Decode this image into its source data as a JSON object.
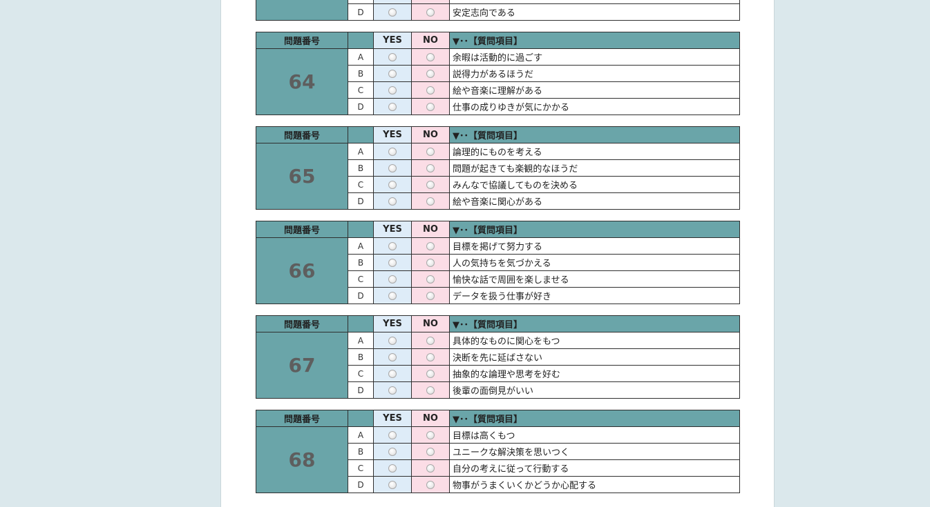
{
  "header": {
    "number_label": "問題番号",
    "yes_label": "YES",
    "no_label": "NO",
    "question_label": "▼･･【質問項目】"
  },
  "top_partial": {
    "letter": "D",
    "text": "安定志向である"
  },
  "questions": [
    {
      "number": "64",
      "items": [
        {
          "letter": "A",
          "text": "余暇は活動的に過ごす"
        },
        {
          "letter": "B",
          "text": "説得力があるほうだ"
        },
        {
          "letter": "C",
          "text": "絵や音楽に理解がある"
        },
        {
          "letter": "D",
          "text": "仕事の成りゆきが気にかかる"
        }
      ]
    },
    {
      "number": "65",
      "items": [
        {
          "letter": "A",
          "text": "論理的にものを考える"
        },
        {
          "letter": "B",
          "text": "問題が起きても楽観的なほうだ"
        },
        {
          "letter": "C",
          "text": "みんなで協議してものを決める"
        },
        {
          "letter": "D",
          "text": "絵や音楽に関心がある"
        }
      ]
    },
    {
      "number": "66",
      "items": [
        {
          "letter": "A",
          "text": "目標を掲げて努力する"
        },
        {
          "letter": "B",
          "text": "人の気持ちを気づかえる"
        },
        {
          "letter": "C",
          "text": "愉快な話で周囲を楽しませる"
        },
        {
          "letter": "D",
          "text": "データを扱う仕事が好き"
        }
      ]
    },
    {
      "number": "67",
      "items": [
        {
          "letter": "A",
          "text": "具体的なものに関心をもつ"
        },
        {
          "letter": "B",
          "text": "決断を先に延ばさない"
        },
        {
          "letter": "C",
          "text": "抽象的な論理や思考を好む"
        },
        {
          "letter": "D",
          "text": "後輩の面倒見がいい"
        }
      ]
    },
    {
      "number": "68",
      "items": [
        {
          "letter": "A",
          "text": "目標は高くもつ"
        },
        {
          "letter": "B",
          "text": "ユニークな解決策を思いつく"
        },
        {
          "letter": "C",
          "text": "自分の考えに従って行動する"
        },
        {
          "letter": "D",
          "text": "物事がうまくいくかどうか心配する"
        }
      ]
    }
  ]
}
